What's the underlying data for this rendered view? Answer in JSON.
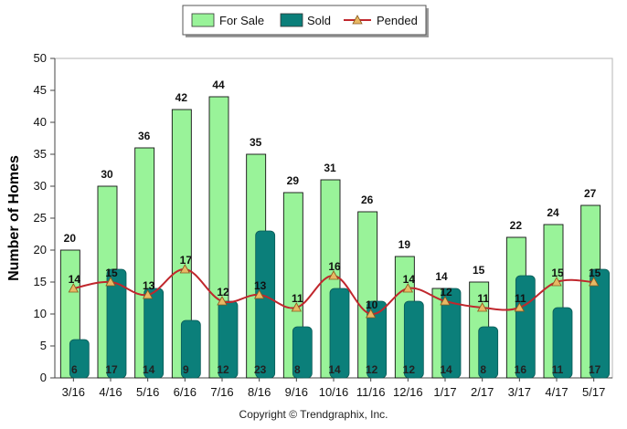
{
  "chart_data": {
    "type": "bar",
    "ylabel": "Number of Homes",
    "xlabel": "",
    "title": "",
    "ylim": [
      0,
      50
    ],
    "yticks": [
      0,
      5,
      10,
      15,
      20,
      25,
      30,
      35,
      40,
      45,
      50
    ],
    "categories": [
      "3/16",
      "4/16",
      "5/16",
      "6/16",
      "7/16",
      "8/16",
      "9/16",
      "10/16",
      "11/16",
      "12/16",
      "1/17",
      "2/17",
      "3/17",
      "4/17",
      "5/17"
    ],
    "series": [
      {
        "name": "For Sale",
        "kind": "bar",
        "color": "#99f399",
        "values": [
          20,
          30,
          36,
          42,
          44,
          35,
          29,
          31,
          26,
          19,
          14,
          15,
          22,
          24,
          27
        ]
      },
      {
        "name": "Sold",
        "kind": "bar",
        "color": "#0b7f7a",
        "values": [
          6,
          17,
          14,
          9,
          12,
          23,
          8,
          14,
          12,
          12,
          14,
          8,
          16,
          11,
          17
        ]
      },
      {
        "name": "Pended",
        "kind": "line",
        "color": "#c0272d",
        "marker_color": "#e8b864",
        "values": [
          14,
          15,
          13,
          17,
          12,
          13,
          11,
          16,
          10,
          14,
          12,
          11,
          11,
          15,
          15
        ]
      }
    ],
    "legend_position": "top-center",
    "grid": false
  },
  "footer": {
    "copyright": "Copyright © Trendgraphix, Inc."
  }
}
